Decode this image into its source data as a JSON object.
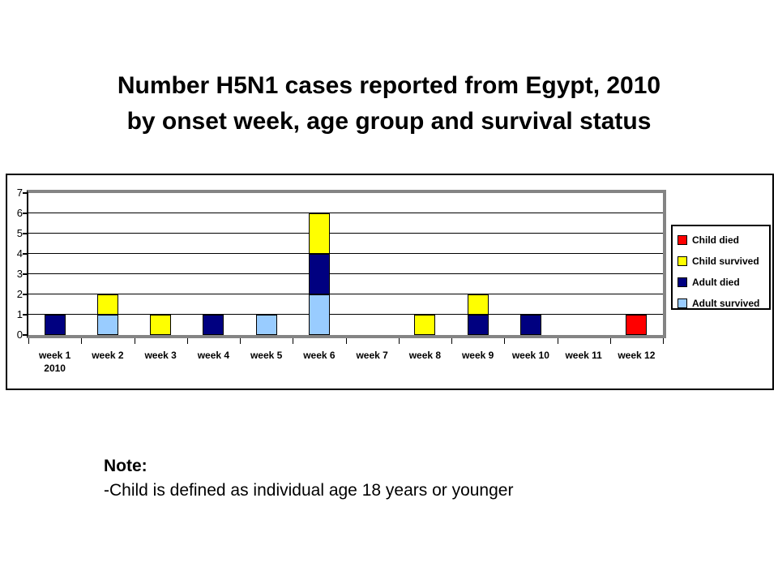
{
  "title": {
    "line1": "Number H5N1 cases reported from Egypt, 2010",
    "line2": "by onset week, age group and survival status"
  },
  "note": {
    "heading": "Note:",
    "body": "-Child is defined as individual age 18 years or younger"
  },
  "chart_data": {
    "type": "bar",
    "stacked": true,
    "title": "Number H5N1 cases reported from Egypt, 2010 by onset week, age group and survival status",
    "xlabel": "",
    "ylabel": "",
    "categories": [
      "week 1",
      "week 2",
      "week 3",
      "week 4",
      "week 5",
      "week 6",
      "week 7",
      "week 8",
      "week 9",
      "week 10",
      "week 11",
      "week 12"
    ],
    "first_category_sublabel": "2010",
    "series": [
      {
        "name": "Adult survived",
        "color": "#99CCFF",
        "values": [
          0,
          1,
          0,
          0,
          1,
          2,
          0,
          0,
          0,
          0,
          0,
          0
        ]
      },
      {
        "name": "Adult died",
        "color": "#000080",
        "values": [
          1,
          0,
          0,
          1,
          0,
          2,
          0,
          0,
          1,
          1,
          0,
          0
        ]
      },
      {
        "name": "Child survived",
        "color": "#FFFF00",
        "values": [
          0,
          1,
          1,
          0,
          0,
          2,
          0,
          1,
          1,
          0,
          0,
          0
        ]
      },
      {
        "name": "Child died",
        "color": "#FF0000",
        "values": [
          0,
          0,
          0,
          0,
          0,
          0,
          0,
          0,
          0,
          0,
          0,
          1
        ]
      }
    ],
    "legend_order": [
      "Child died",
      "Child survived",
      "Adult died",
      "Adult survived"
    ],
    "legend_position": "right",
    "ylim": [
      0,
      7
    ],
    "yticks": [
      0,
      1,
      2,
      3,
      4,
      5,
      6,
      7
    ],
    "grid": true
  }
}
